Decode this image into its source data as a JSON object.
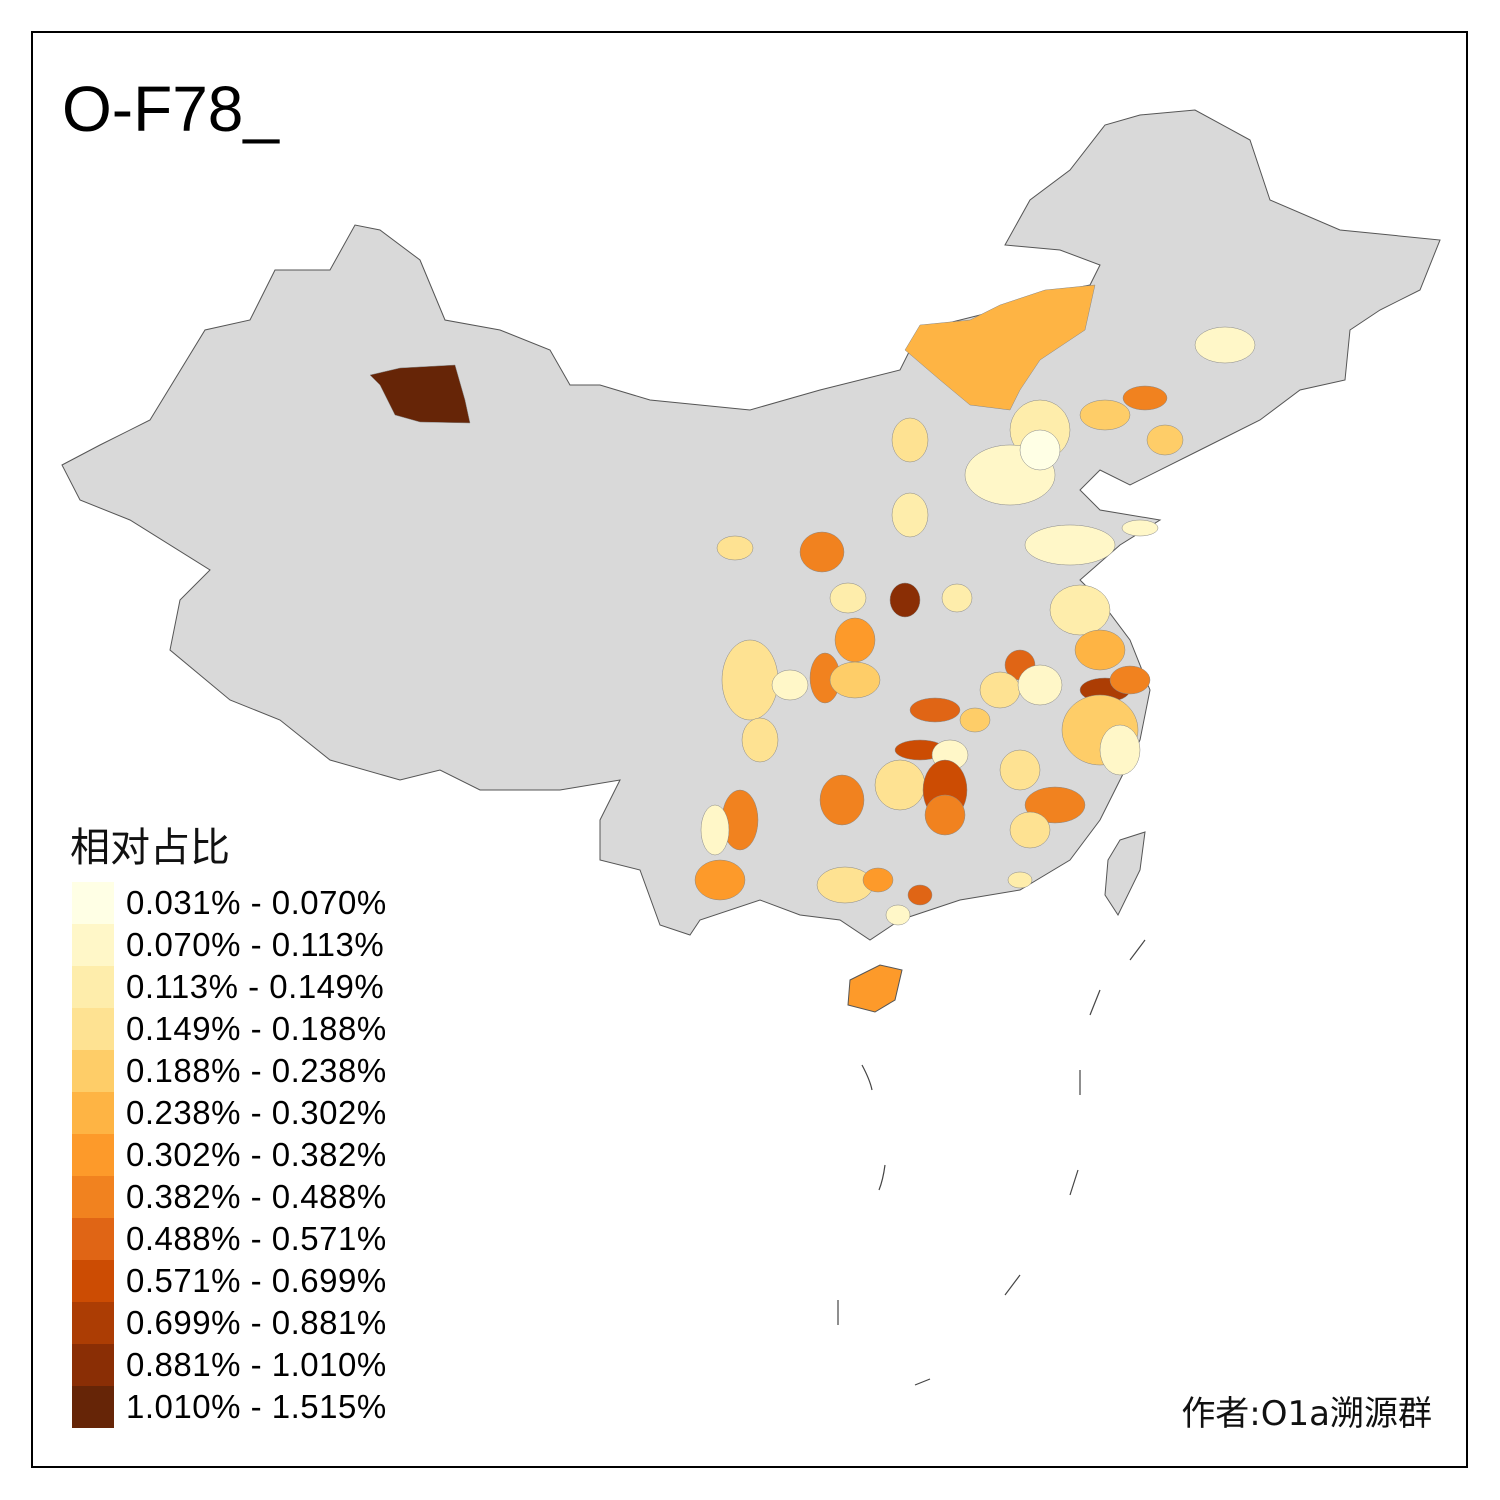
{
  "title": "O-F78_",
  "legend": {
    "title": "相对占比",
    "items": [
      {
        "label": "0.031% - 0.070%",
        "color": "#ffffe5"
      },
      {
        "label": "0.070% - 0.113%",
        "color": "#fff7c8"
      },
      {
        "label": "0.113% - 0.149%",
        "color": "#feedab"
      },
      {
        "label": "0.149% - 0.188%",
        "color": "#fee292"
      },
      {
        "label": "0.188% - 0.238%",
        "color": "#fecd68"
      },
      {
        "label": "0.238% - 0.302%",
        "color": "#feb444"
      },
      {
        "label": "0.302% - 0.382%",
        "color": "#fd9a2a"
      },
      {
        "label": "0.382% - 0.488%",
        "color": "#f1821f"
      },
      {
        "label": "0.488% - 0.571%",
        "color": "#e06515"
      },
      {
        "label": "0.571% - 0.699%",
        "color": "#cc4c03"
      },
      {
        "label": "0.699% - 0.881%",
        "color": "#ac3d04"
      },
      {
        "label": "0.881% - 1.010%",
        "color": "#8a2e05"
      },
      {
        "label": "1.010% - 1.515%",
        "color": "#662507"
      }
    ]
  },
  "no_data_color": "#d9d9d9",
  "author": "作者:O1a溯源群"
}
